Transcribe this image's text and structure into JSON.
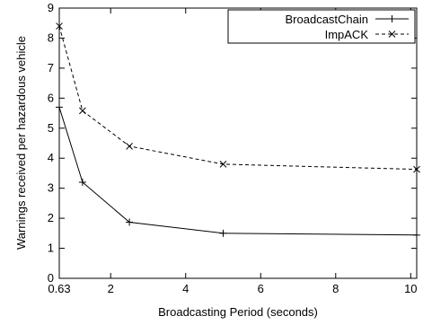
{
  "chart_data": {
    "type": "line",
    "xlabel": "Broadcasting Period (seconds)",
    "ylabel": "Warnings received per hazardous vehicle",
    "xlim": [
      0.63,
      10.16
    ],
    "ylim": [
      0,
      9
    ],
    "xticks": [
      0.63,
      2,
      4,
      6,
      8,
      10
    ],
    "xtick_labels": [
      "0.63",
      "2",
      "4",
      "6",
      "8",
      "10"
    ],
    "yticks": [
      0,
      1,
      2,
      3,
      4,
      5,
      6,
      7,
      8,
      9
    ],
    "ytick_labels": [
      "0",
      "1",
      "2",
      "3",
      "4",
      "5",
      "6",
      "7",
      "8",
      "9"
    ],
    "grid": false,
    "legend_position": "top-right",
    "series": [
      {
        "name": "BroadcastChain",
        "line_style": "solid",
        "marker": "plus",
        "color": "#000000",
        "x": [
          0.63,
          1.25,
          2.5,
          5.0,
          10.16
        ],
        "y": [
          5.7,
          3.2,
          1.87,
          1.5,
          1.44
        ]
      },
      {
        "name": "ImpACK",
        "line_style": "dashed",
        "marker": "cross",
        "color": "#000000",
        "x": [
          0.63,
          1.25,
          2.5,
          5.0,
          10.16
        ],
        "y": [
          8.4,
          5.58,
          4.4,
          3.8,
          3.63
        ]
      }
    ]
  }
}
